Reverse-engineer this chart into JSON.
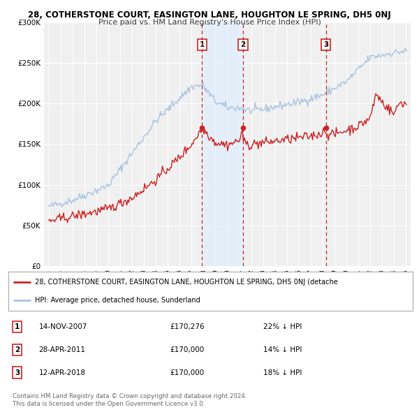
{
  "title": "28, COTHERSTONE COURT, EASINGTON LANE, HOUGHTON LE SPRING, DH5 0NJ",
  "subtitle": "Price paid vs. HM Land Registry's House Price Index (HPI)",
  "ylim": [
    0,
    300000
  ],
  "yticks": [
    0,
    50000,
    100000,
    150000,
    200000,
    250000,
    300000
  ],
  "ytick_labels": [
    "£0",
    "£50K",
    "£100K",
    "£150K",
    "£200K",
    "£250K",
    "£300K"
  ],
  "hpi_color": "#aac4e0",
  "price_color": "#cc2222",
  "sale_line_color": "#cc2222",
  "bg_color": "#ffffff",
  "plot_bg_color": "#f0f0f0",
  "grid_color": "#ffffff",
  "sale_bg_color": "#ddeeff",
  "sales": [
    {
      "date": "14-NOV-2007",
      "year": 2007.87,
      "price": 170276,
      "label": "1"
    },
    {
      "date": "28-APR-2011",
      "year": 2011.32,
      "price": 170000,
      "label": "2"
    },
    {
      "date": "12-APR-2018",
      "year": 2018.28,
      "price": 170000,
      "label": "3"
    }
  ],
  "sale_shade_spans": [
    [
      2007.87,
      2011.32
    ]
  ],
  "legend_property_label": "28, COTHERSTONE COURT, EASINGTON LANE, HOUGHTON LE SPRING, DH5 0NJ (detache",
  "legend_hpi_label": "HPI: Average price, detached house, Sunderland",
  "footer1": "Contains HM Land Registry data © Crown copyright and database right 2024.",
  "footer2": "This data is licensed under the Open Government Licence v3.0.",
  "table_rows": [
    [
      "1",
      "14-NOV-2007",
      "£170,276",
      "22% ↓ HPI"
    ],
    [
      "2",
      "28-APR-2011",
      "£170,000",
      "14% ↓ HPI"
    ],
    [
      "3",
      "12-APR-2018",
      "£170,000",
      "18% ↓ HPI"
    ]
  ]
}
